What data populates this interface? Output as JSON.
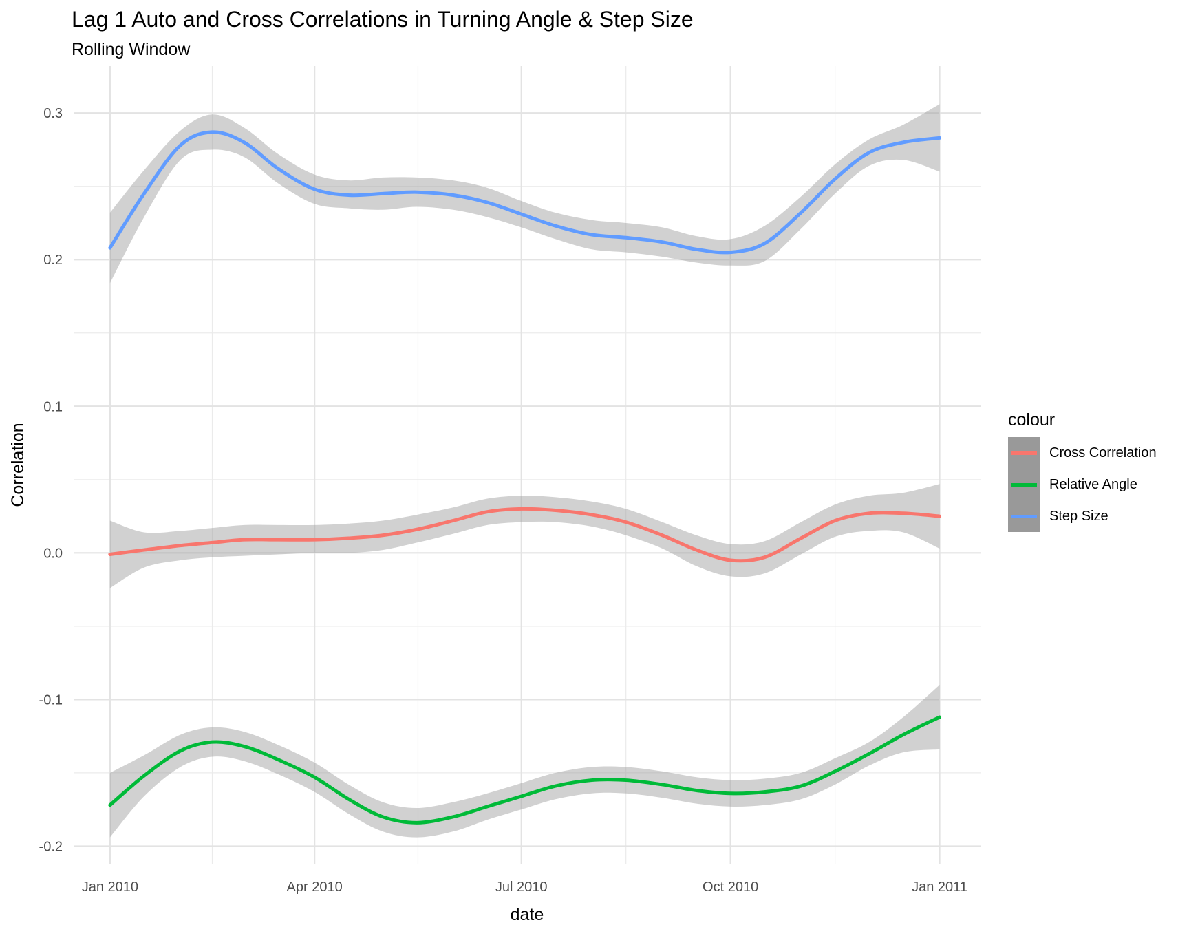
{
  "title": "Lag 1 Auto and Cross Correlations in Turning Angle & Step Size",
  "subtitle": "Rolling Window",
  "chart_data": {
    "type": "line",
    "title": "Lag 1 Auto and Cross Correlations in Turning Angle & Step Size",
    "subtitle": "Rolling Window",
    "xlabel": "date",
    "ylabel": "Correlation",
    "x_ticks": [
      "Jan 2010",
      "Apr 2010",
      "Jul 2010",
      "Oct 2010",
      "Jan 2011"
    ],
    "x_tick_values": [
      "2010-01-01",
      "2010-04-01",
      "2010-07-01",
      "2010-10-01",
      "2011-01-01"
    ],
    "y_ticks": [
      "-0.2",
      "-0.1",
      "0.0",
      "0.1",
      "0.2",
      "0.3"
    ],
    "y_tick_values": [
      -0.2,
      -0.1,
      0.0,
      0.1,
      0.2,
      0.3
    ],
    "ylim": [
      -0.212,
      0.332
    ],
    "xlim": [
      "2009-12-16",
      "2011-01-19"
    ],
    "grid": true,
    "legend": {
      "title": "colour",
      "position": "right"
    },
    "x": [
      "2010-01-01",
      "2010-01-16",
      "2010-02-01",
      "2010-02-15",
      "2010-03-01",
      "2010-03-16",
      "2010-04-01",
      "2010-04-16",
      "2010-05-01",
      "2010-05-16",
      "2010-06-01",
      "2010-06-16",
      "2010-07-01",
      "2010-07-16",
      "2010-08-01",
      "2010-08-16",
      "2010-09-01",
      "2010-09-16",
      "2010-10-01",
      "2010-10-16",
      "2010-11-01",
      "2010-11-16",
      "2010-12-01",
      "2010-12-16",
      "2011-01-01"
    ],
    "series": [
      {
        "name": "Cross Correlation",
        "color": "#F8766D",
        "values": [
          -0.001,
          0.002,
          0.005,
          0.007,
          0.009,
          0.009,
          0.009,
          0.01,
          0.012,
          0.016,
          0.022,
          0.028,
          0.03,
          0.029,
          0.026,
          0.021,
          0.012,
          0.002,
          -0.005,
          -0.003,
          0.01,
          0.022,
          0.027,
          0.027,
          0.025
        ],
        "lower": [
          -0.024,
          -0.01,
          -0.005,
          -0.003,
          -0.002,
          -0.001,
          0.0,
          0.0,
          0.002,
          0.007,
          0.013,
          0.019,
          0.021,
          0.021,
          0.018,
          0.012,
          0.003,
          -0.009,
          -0.016,
          -0.014,
          -0.001,
          0.011,
          0.015,
          0.014,
          0.003
        ],
        "upper": [
          0.022,
          0.014,
          0.015,
          0.017,
          0.019,
          0.019,
          0.019,
          0.02,
          0.022,
          0.026,
          0.031,
          0.037,
          0.039,
          0.038,
          0.035,
          0.03,
          0.021,
          0.012,
          0.006,
          0.008,
          0.021,
          0.033,
          0.039,
          0.041,
          0.047
        ]
      },
      {
        "name": "Relative Angle",
        "color": "#00BA38",
        "values": [
          -0.172,
          -0.152,
          -0.135,
          -0.129,
          -0.132,
          -0.141,
          -0.153,
          -0.168,
          -0.18,
          -0.184,
          -0.18,
          -0.173,
          -0.166,
          -0.159,
          -0.155,
          -0.155,
          -0.158,
          -0.162,
          -0.164,
          -0.163,
          -0.159,
          -0.149,
          -0.137,
          -0.124,
          -0.112
        ],
        "lower": [
          -0.194,
          -0.166,
          -0.146,
          -0.139,
          -0.142,
          -0.151,
          -0.163,
          -0.178,
          -0.19,
          -0.194,
          -0.19,
          -0.182,
          -0.175,
          -0.168,
          -0.164,
          -0.164,
          -0.167,
          -0.171,
          -0.173,
          -0.172,
          -0.168,
          -0.158,
          -0.145,
          -0.136,
          -0.134
        ],
        "upper": [
          -0.15,
          -0.138,
          -0.124,
          -0.119,
          -0.122,
          -0.131,
          -0.143,
          -0.158,
          -0.17,
          -0.174,
          -0.17,
          -0.164,
          -0.157,
          -0.15,
          -0.146,
          -0.146,
          -0.149,
          -0.153,
          -0.155,
          -0.154,
          -0.15,
          -0.14,
          -0.129,
          -0.112,
          -0.09
        ]
      },
      {
        "name": "Step Size",
        "color": "#619CFF",
        "values": [
          0.208,
          0.245,
          0.278,
          0.287,
          0.28,
          0.262,
          0.248,
          0.244,
          0.245,
          0.246,
          0.244,
          0.239,
          0.231,
          0.223,
          0.217,
          0.215,
          0.212,
          0.207,
          0.205,
          0.211,
          0.232,
          0.255,
          0.273,
          0.28,
          0.283
        ],
        "lower": [
          0.184,
          0.229,
          0.268,
          0.275,
          0.27,
          0.252,
          0.238,
          0.235,
          0.234,
          0.236,
          0.234,
          0.229,
          0.222,
          0.214,
          0.207,
          0.205,
          0.202,
          0.198,
          0.196,
          0.199,
          0.221,
          0.245,
          0.264,
          0.268,
          0.26
        ],
        "upper": [
          0.232,
          0.261,
          0.288,
          0.299,
          0.29,
          0.272,
          0.258,
          0.254,
          0.256,
          0.256,
          0.254,
          0.249,
          0.24,
          0.232,
          0.227,
          0.225,
          0.222,
          0.216,
          0.214,
          0.223,
          0.243,
          0.265,
          0.282,
          0.292,
          0.306
        ]
      }
    ]
  }
}
